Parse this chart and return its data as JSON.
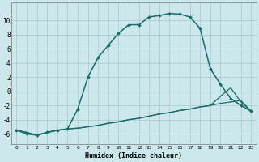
{
  "xlabel": "Humidex (Indice chaleur)",
  "background_color": "#cce8ec",
  "grid_color": "#aacdd4",
  "line_color": "#1a6b6b",
  "x_ticks": [
    0,
    1,
    2,
    3,
    4,
    5,
    6,
    7,
    8,
    9,
    10,
    11,
    12,
    13,
    14,
    15,
    16,
    17,
    18,
    19,
    20,
    21,
    22,
    23
  ],
  "y_ticks": [
    -6,
    -4,
    -2,
    0,
    2,
    4,
    6,
    8,
    10
  ],
  "ylim": [
    -7.5,
    12.5
  ],
  "xlim": [
    -0.5,
    23.5
  ],
  "curve1_x": [
    0,
    1,
    2,
    3,
    4,
    5,
    6,
    7,
    8,
    9,
    10,
    11,
    12,
    13,
    14,
    15,
    16,
    17,
    18,
    19,
    20,
    21,
    22,
    23
  ],
  "curve1_y": [
    -5.5,
    -6.0,
    -6.2,
    -5.8,
    -5.5,
    -5.3,
    -2.5,
    2.0,
    4.8,
    6.5,
    8.2,
    9.4,
    9.4,
    10.5,
    10.7,
    11.0,
    10.9,
    10.5,
    8.9,
    3.2,
    1.0,
    -1.0,
    -2.0,
    -2.8
  ],
  "curve2_x": [
    0,
    1,
    2,
    3,
    4,
    5,
    6,
    7,
    8,
    9,
    10,
    11,
    12,
    13,
    14,
    15,
    16,
    17,
    18,
    19,
    20,
    21,
    22,
    23
  ],
  "curve2_y": [
    -5.5,
    -5.8,
    -6.2,
    -5.8,
    -5.5,
    -5.3,
    -5.2,
    -5.0,
    -4.8,
    -4.5,
    -4.3,
    -4.0,
    -3.8,
    -3.5,
    -3.2,
    -3.0,
    -2.7,
    -2.5,
    -2.2,
    -2.0,
    -1.7,
    -1.5,
    -1.3,
    -2.8
  ],
  "curve3_x": [
    0,
    1,
    2,
    3,
    4,
    5,
    6,
    7,
    8,
    9,
    10,
    11,
    12,
    13,
    14,
    15,
    16,
    17,
    18,
    19,
    20,
    21,
    22,
    23
  ],
  "curve3_y": [
    -5.5,
    -5.8,
    -6.2,
    -5.8,
    -5.5,
    -5.3,
    -5.2,
    -5.0,
    -4.8,
    -4.5,
    -4.3,
    -4.0,
    -3.8,
    -3.5,
    -3.2,
    -3.0,
    -2.7,
    -2.5,
    -2.2,
    -2.0,
    -0.7,
    0.5,
    -1.5,
    -2.8
  ]
}
